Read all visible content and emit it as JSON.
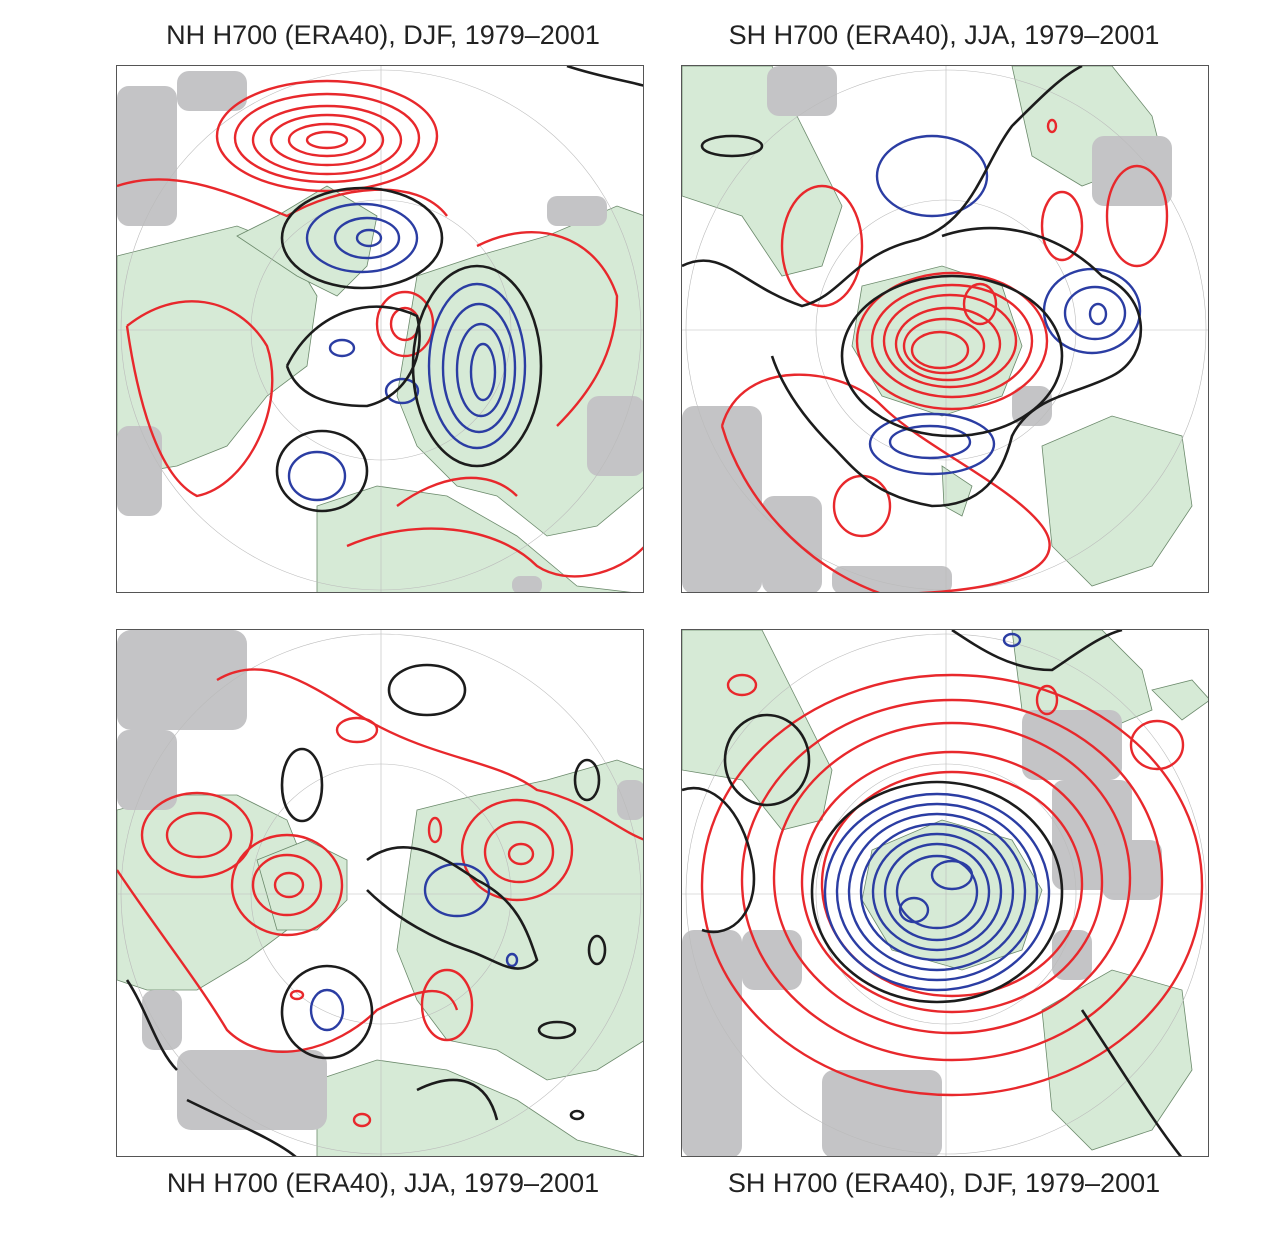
{
  "panels": [
    {
      "title": "NH H700 (ERA40), DJF, 1979–2001"
    },
    {
      "title": "SH H700 (ERA40), JJA, 1979–2001"
    },
    {
      "title": "NH H700 (ERA40), JJA, 1979–2001"
    },
    {
      "title": "SH H700 (ERA40), DJF, 1979–2001"
    }
  ],
  "colors": {
    "positive_contour": "#e8282c",
    "negative_contour": "#2b3da3",
    "zero_contour": "#1c1c1c",
    "land": "#d6ead6",
    "coastline": "#6c8a6c",
    "significance_dots": "#c4c4c6",
    "grid": "#bbbbbb"
  }
}
